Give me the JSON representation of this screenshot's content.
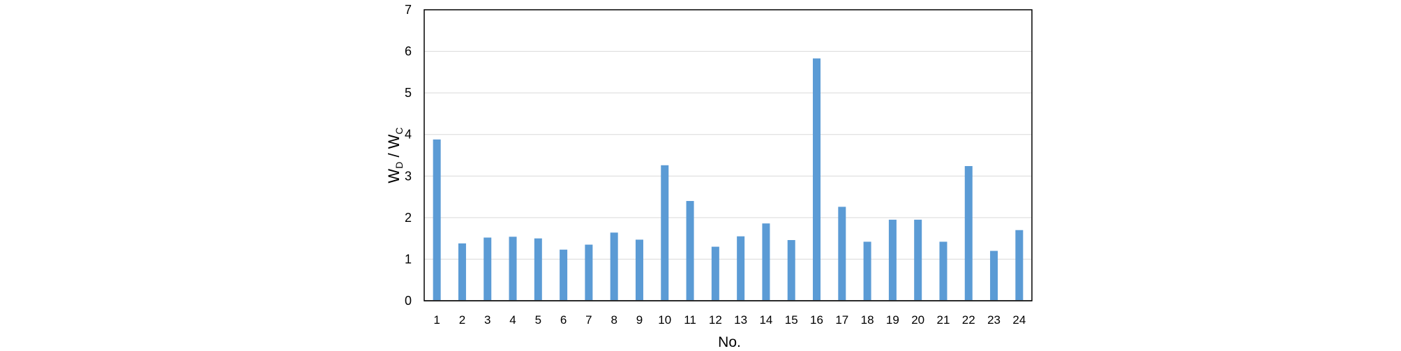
{
  "chart_data": {
    "type": "bar",
    "title": "",
    "xlabel": "No.",
    "ylabel": {
      "main_a": "W",
      "sub_a": "D",
      "sep": " / ",
      "main_b": "W",
      "sub_b": "C"
    },
    "categories": [
      "1",
      "2",
      "3",
      "4",
      "5",
      "6",
      "7",
      "8",
      "9",
      "10",
      "11",
      "12",
      "13",
      "14",
      "15",
      "16",
      "17",
      "18",
      "19",
      "20",
      "21",
      "22",
      "23",
      "24"
    ],
    "values": [
      3.88,
      1.38,
      1.52,
      1.54,
      1.5,
      1.23,
      1.35,
      1.64,
      1.47,
      3.26,
      2.4,
      1.3,
      1.55,
      1.86,
      1.46,
      5.83,
      2.26,
      1.42,
      1.95,
      1.95,
      1.42,
      3.24,
      1.2,
      1.7
    ],
    "ylim": [
      0,
      7
    ],
    "yticks": [
      "0",
      "1",
      "2",
      "3",
      "4",
      "5",
      "6",
      "7"
    ],
    "grid": true,
    "legend": "none",
    "colors": {
      "bar": "#5B9BD5",
      "grid": "#D9D9D9",
      "axis": "#000000",
      "baseline": "#A6A6A6"
    }
  }
}
